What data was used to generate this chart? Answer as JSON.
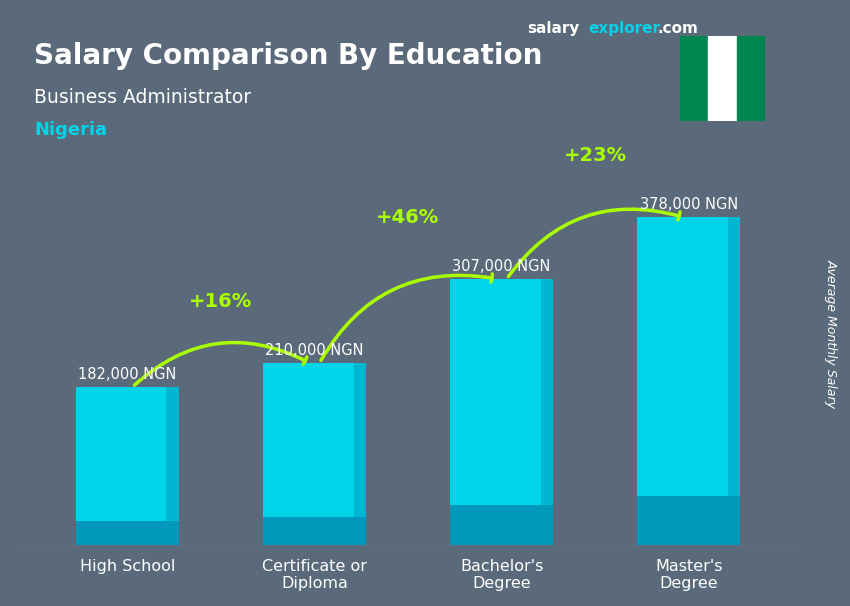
{
  "title_line1": "Salary Comparison By Education",
  "subtitle": "Business Administrator",
  "country": "Nigeria",
  "ylabel": "Average Monthly Salary",
  "categories": [
    "High School",
    "Certificate or\nDiploma",
    "Bachelor's\nDegree",
    "Master's\nDegree"
  ],
  "values": [
    182000,
    210000,
    307000,
    378000
  ],
  "value_labels": [
    "182,000 NGN",
    "210,000 NGN",
    "307,000 NGN",
    "378,000 NGN"
  ],
  "pct_changes": [
    "+16%",
    "+46%",
    "+23%"
  ],
  "bar_color_top": "#00d4e8",
  "bar_color_bottom": "#0099bb",
  "background_color": "#5a6a7a",
  "title_color": "#ffffff",
  "subtitle_color": "#ffffff",
  "country_color": "#00d4e8",
  "value_label_color": "#ffffff",
  "pct_color": "#aaff00",
  "site_color_salary": "#ffffff",
  "site_color_explorer": "#00d4e8",
  "site_color_com": "#ffffff",
  "ylim_max": 450000,
  "flag_green": "#008751",
  "flag_white": "#ffffff"
}
